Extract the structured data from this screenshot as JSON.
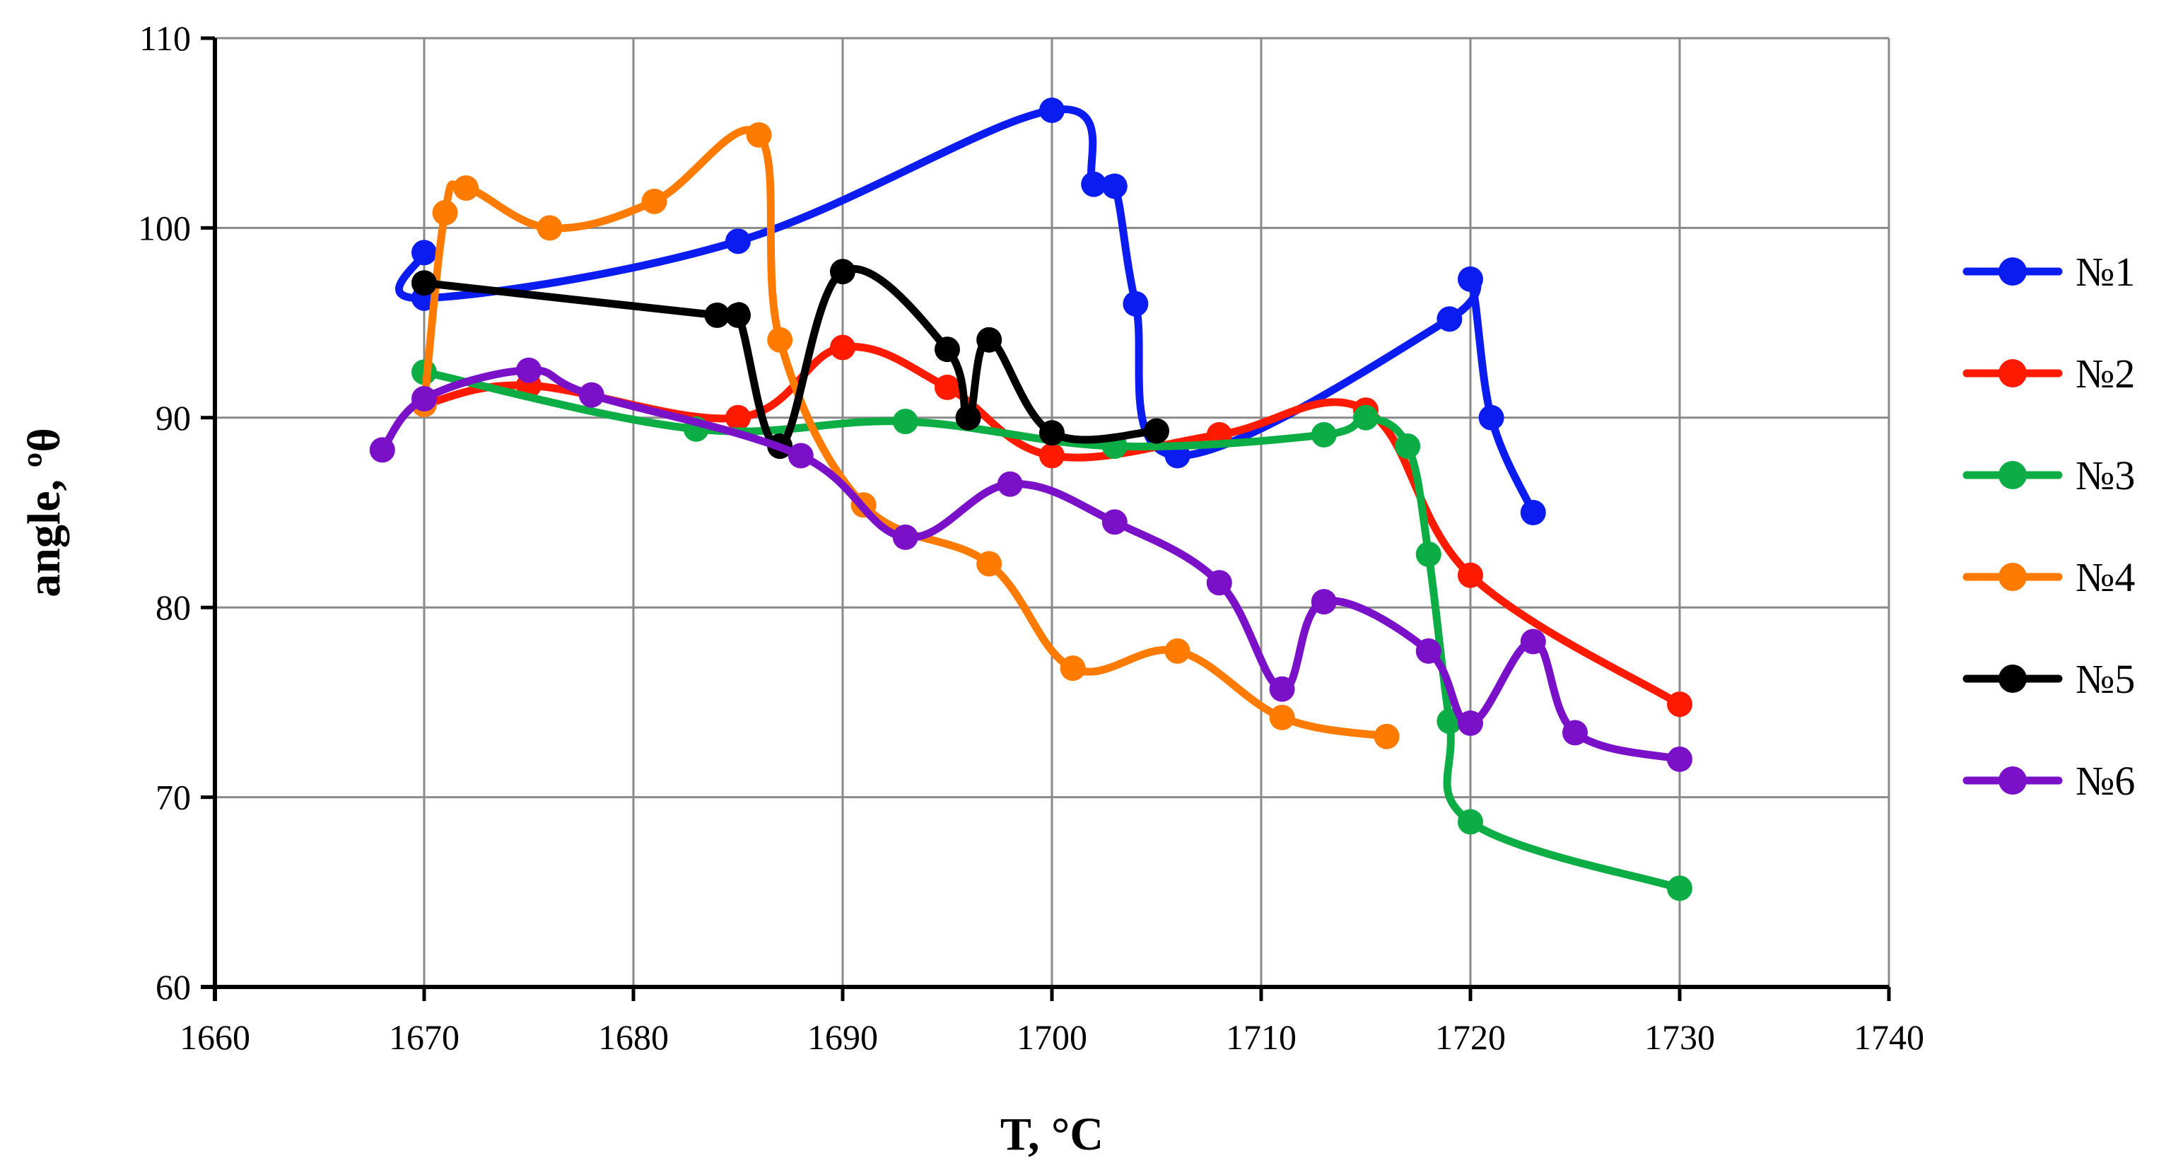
{
  "chart_data": {
    "type": "line",
    "title": "",
    "xlabel": "T, °C",
    "ylabel": "angle, ºθ",
    "xlim": [
      1660,
      1740
    ],
    "ylim": [
      60,
      110
    ],
    "xticks": [
      1660,
      1670,
      1680,
      1690,
      1700,
      1710,
      1720,
      1730,
      1740
    ],
    "yticks": [
      60,
      70,
      80,
      90,
      100,
      110
    ],
    "grid": true,
    "legend_position": "right",
    "series": [
      {
        "name": "№1",
        "color": "#0a1cf0",
        "points": [
          [
            1670,
            98.7
          ],
          [
            1670,
            96.3
          ],
          [
            1685,
            99.3
          ],
          [
            1700,
            106.2
          ],
          [
            1702,
            102.3
          ],
          [
            1703,
            102.2
          ],
          [
            1704,
            96.0
          ],
          [
            1706,
            88.0
          ],
          [
            1719,
            95.2
          ],
          [
            1720,
            97.3
          ],
          [
            1721,
            90.0
          ],
          [
            1723,
            85.0
          ]
        ]
      },
      {
        "name": "№2",
        "color": "#ff1a00",
        "points": [
          [
            1670,
            90.7
          ],
          [
            1675,
            91.7
          ],
          [
            1685,
            90.0
          ],
          [
            1690,
            93.7
          ],
          [
            1695,
            91.6
          ],
          [
            1700,
            88.0
          ],
          [
            1708,
            89.1
          ],
          [
            1715,
            90.4
          ],
          [
            1720,
            81.7
          ],
          [
            1730,
            74.9
          ]
        ]
      },
      {
        "name": "№3",
        "color": "#0dad45",
        "points": [
          [
            1670,
            92.4
          ],
          [
            1683,
            89.4
          ],
          [
            1693,
            89.8
          ],
          [
            1703,
            88.5
          ],
          [
            1713,
            89.1
          ],
          [
            1715,
            90.0
          ],
          [
            1717,
            88.5
          ],
          [
            1718,
            82.8
          ],
          [
            1719,
            74.0
          ],
          [
            1720,
            68.7
          ],
          [
            1730,
            65.2
          ]
        ]
      },
      {
        "name": "№4",
        "color": "#ff7b00",
        "points": [
          [
            1670,
            90.7
          ],
          [
            1671,
            100.8
          ],
          [
            1672,
            102.1
          ],
          [
            1676,
            100.0
          ],
          [
            1681,
            101.4
          ],
          [
            1686,
            104.9
          ],
          [
            1687,
            94.1
          ],
          [
            1691,
            85.4
          ],
          [
            1697,
            82.3
          ],
          [
            1701,
            76.8
          ],
          [
            1706,
            77.7
          ],
          [
            1711,
            74.2
          ],
          [
            1716,
            73.2
          ]
        ]
      },
      {
        "name": "№5",
        "color": "#000000",
        "points": [
          [
            1670,
            97.1
          ],
          [
            1684,
            95.4
          ],
          [
            1685,
            95.4
          ],
          [
            1687,
            88.5
          ],
          [
            1690,
            97.7
          ],
          [
            1695,
            93.6
          ],
          [
            1696,
            90.0
          ],
          [
            1697,
            94.1
          ],
          [
            1700,
            89.2
          ],
          [
            1705,
            89.3
          ]
        ]
      },
      {
        "name": "№6",
        "color": "#7a10c8",
        "points": [
          [
            1668,
            88.3
          ],
          [
            1670,
            91.0
          ],
          [
            1675,
            92.5
          ],
          [
            1678,
            91.2
          ],
          [
            1688,
            88.0
          ],
          [
            1693,
            83.7
          ],
          [
            1698,
            86.5
          ],
          [
            1703,
            84.5
          ],
          [
            1708,
            81.3
          ],
          [
            1711,
            75.7
          ],
          [
            1713,
            80.3
          ],
          [
            1718,
            77.7
          ],
          [
            1720,
            73.9
          ],
          [
            1723,
            78.2
          ],
          [
            1725,
            73.4
          ],
          [
            1730,
            72.0
          ]
        ]
      }
    ]
  }
}
